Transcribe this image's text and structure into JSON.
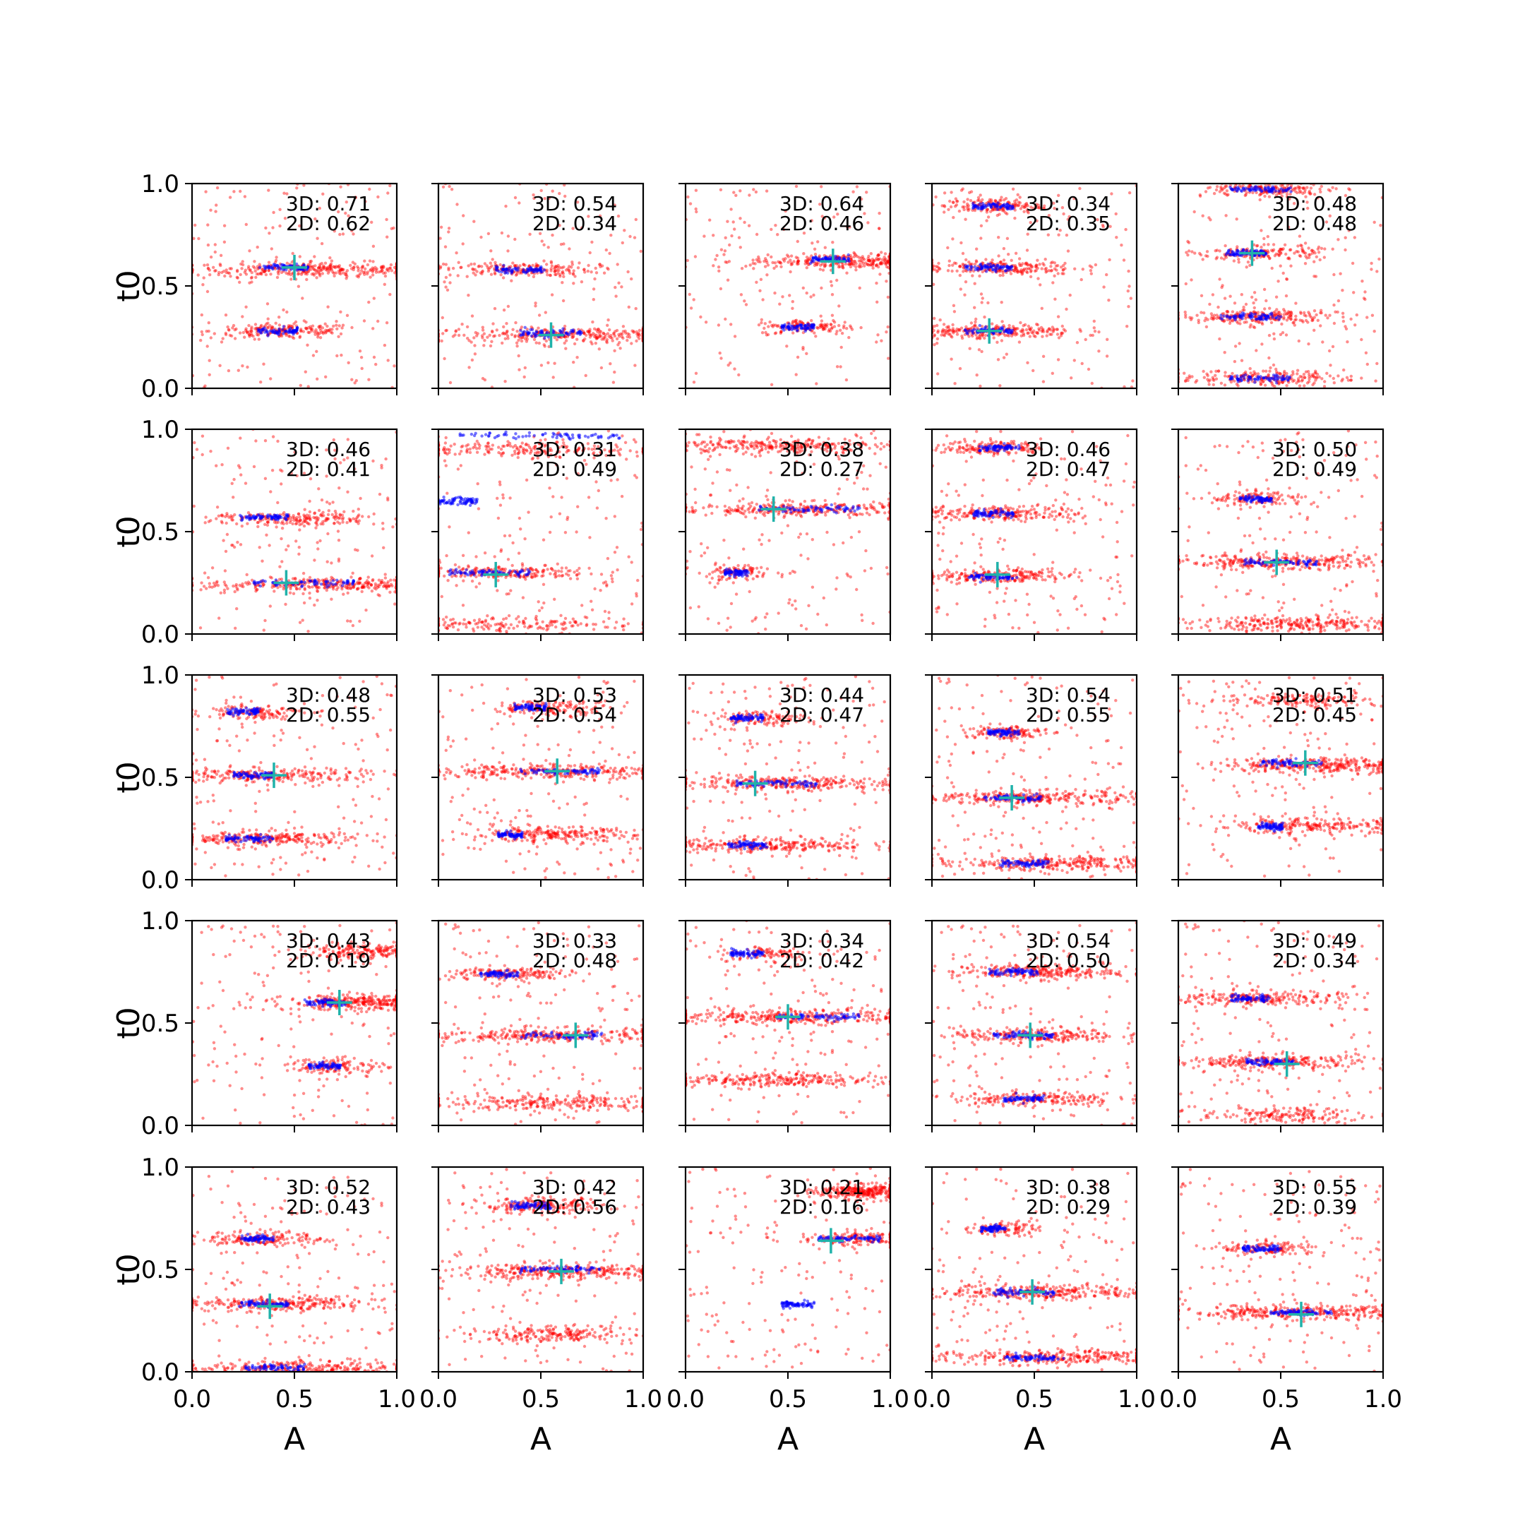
{
  "figure": {
    "xlabel": "A",
    "ylabel": "t0",
    "colors": {
      "points_red": "#ff0000",
      "points_blue": "#0000ff",
      "marker": "#20b2aa"
    }
  },
  "chart_data": {
    "type": "scatter",
    "layout": "5x5 grid of subplots",
    "xlabel": "A",
    "ylabel": "t0",
    "xlim": [
      0,
      1
    ],
    "ylim": [
      0,
      1
    ],
    "xticks": [
      "0.0",
      "0.5",
      "1.0"
    ],
    "yticks": [
      "0.0",
      "0.5",
      "1.0"
    ],
    "series_colors": [
      "#ff0000",
      "#0000ff"
    ],
    "marker": "+",
    "marker_color": "#20b2aa",
    "panels": [
      {
        "ann3d": "3D: 0.71",
        "ann2d": "2D: 0.62",
        "marker": [
          0.5,
          0.59
        ],
        "blue": [
          [
            0.45,
            0.59,
            0.12
          ],
          [
            0.42,
            0.28,
            0.1
          ]
        ],
        "red": [
          [
            0.6,
            0.58,
            0.3,
            1.0
          ],
          [
            0.45,
            0.28,
            0.18,
            0.6
          ]
        ]
      },
      {
        "ann3d": "3D: 0.54",
        "ann2d": "2D: 0.34",
        "marker": [
          0.55,
          0.26
        ],
        "blue": [
          [
            0.4,
            0.58,
            0.12
          ],
          [
            0.55,
            0.27,
            0.15
          ]
        ],
        "red": [
          [
            0.4,
            0.58,
            0.18,
            0.6
          ],
          [
            0.7,
            0.26,
            0.35,
            1.0
          ]
        ]
      },
      {
        "ann3d": "3D: 0.64",
        "ann2d": "2D: 0.46",
        "marker": [
          0.72,
          0.62
        ],
        "blue": [
          [
            0.55,
            0.3,
            0.08
          ],
          [
            0.7,
            0.63,
            0.1
          ]
        ],
        "red": [
          [
            0.8,
            0.62,
            0.25,
            1.0
          ],
          [
            0.6,
            0.3,
            0.12,
            0.4
          ]
        ]
      },
      {
        "ann3d": "3D: 0.34",
        "ann2d": "2D: 0.35",
        "marker": [
          0.28,
          0.28
        ],
        "blue": [
          [
            0.3,
            0.89,
            0.1
          ],
          [
            0.28,
            0.59,
            0.12
          ],
          [
            0.28,
            0.28,
            0.12
          ]
        ],
        "red": [
          [
            0.3,
            0.89,
            0.12,
            0.5
          ],
          [
            0.3,
            0.59,
            0.2,
            0.7
          ],
          [
            0.3,
            0.28,
            0.2,
            0.7
          ]
        ]
      },
      {
        "ann3d": "3D: 0.48",
        "ann2d": "2D: 0.48",
        "marker": [
          0.36,
          0.66
        ],
        "blue": [
          [
            0.4,
            0.97,
            0.15
          ],
          [
            0.33,
            0.66,
            0.1
          ],
          [
            0.35,
            0.35,
            0.15
          ],
          [
            0.4,
            0.05,
            0.15
          ]
        ],
        "red": [
          [
            0.45,
            0.97,
            0.15,
            0.5
          ],
          [
            0.4,
            0.66,
            0.15,
            0.5
          ],
          [
            0.4,
            0.35,
            0.2,
            0.7
          ],
          [
            0.4,
            0.05,
            0.2,
            0.6
          ]
        ]
      },
      {
        "ann3d": "3D: 0.46",
        "ann2d": "2D: 0.41",
        "marker": [
          0.46,
          0.25
        ],
        "blue": [
          [
            0.35,
            0.57,
            0.12
          ],
          [
            0.55,
            0.25,
            0.25
          ]
        ],
        "red": [
          [
            0.5,
            0.56,
            0.2,
            0.6
          ],
          [
            0.65,
            0.24,
            0.3,
            1.0
          ]
        ]
      },
      {
        "ann3d": "3D: 0.31",
        "ann2d": "2D: 0.49",
        "marker": [
          0.28,
          0.29
        ],
        "blue": [
          [
            0.5,
            0.97,
            0.4
          ],
          [
            0.25,
            0.3,
            0.2
          ],
          [
            0.1,
            0.65,
            0.1
          ]
        ],
        "red": [
          [
            0.4,
            0.9,
            0.35,
            0.6
          ],
          [
            0.25,
            0.3,
            0.25,
            0.7
          ],
          [
            0.4,
            0.05,
            0.3,
            0.5
          ]
        ]
      },
      {
        "ann3d": "3D: 0.38",
        "ann2d": "2D: 0.27",
        "marker": [
          0.43,
          0.61
        ],
        "blue": [
          [
            0.6,
            0.61,
            0.25
          ],
          [
            0.25,
            0.3,
            0.06
          ]
        ],
        "red": [
          [
            0.45,
            0.92,
            0.25,
            0.8
          ],
          [
            0.55,
            0.61,
            0.3,
            0.9
          ],
          [
            0.25,
            0.3,
            0.1,
            0.3
          ]
        ]
      },
      {
        "ann3d": "3D: 0.46",
        "ann2d": "2D: 0.47",
        "marker": [
          0.32,
          0.29
        ],
        "blue": [
          [
            0.33,
            0.91,
            0.1
          ],
          [
            0.3,
            0.59,
            0.1
          ],
          [
            0.3,
            0.28,
            0.12
          ]
        ],
        "red": [
          [
            0.3,
            0.91,
            0.12,
            0.5
          ],
          [
            0.35,
            0.59,
            0.2,
            0.7
          ],
          [
            0.3,
            0.28,
            0.2,
            0.7
          ]
        ]
      },
      {
        "ann3d": "3D: 0.50",
        "ann2d": "2D: 0.49",
        "marker": [
          0.48,
          0.35
        ],
        "blue": [
          [
            0.38,
            0.66,
            0.08
          ],
          [
            0.5,
            0.35,
            0.18
          ]
        ],
        "red": [
          [
            0.4,
            0.66,
            0.12,
            0.4
          ],
          [
            0.5,
            0.35,
            0.25,
            0.9
          ],
          [
            0.65,
            0.05,
            0.3,
            0.9
          ]
        ]
      },
      {
        "ann3d": "3D: 0.48",
        "ann2d": "2D: 0.55",
        "marker": [
          0.4,
          0.51
        ],
        "blue": [
          [
            0.25,
            0.82,
            0.08
          ],
          [
            0.3,
            0.51,
            0.1
          ],
          [
            0.28,
            0.2,
            0.12
          ]
        ],
        "red": [
          [
            0.3,
            0.82,
            0.12,
            0.4
          ],
          [
            0.35,
            0.51,
            0.25,
            0.8
          ],
          [
            0.35,
            0.2,
            0.25,
            0.8
          ]
        ]
      },
      {
        "ann3d": "3D: 0.53",
        "ann2d": "2D: 0.54",
        "marker": [
          0.58,
          0.53
        ],
        "blue": [
          [
            0.45,
            0.84,
            0.08
          ],
          [
            0.6,
            0.53,
            0.2
          ],
          [
            0.35,
            0.22,
            0.06
          ]
        ],
        "red": [
          [
            0.55,
            0.84,
            0.15,
            0.5
          ],
          [
            0.55,
            0.53,
            0.3,
            0.9
          ],
          [
            0.55,
            0.22,
            0.2,
            0.7
          ]
        ]
      },
      {
        "ann3d": "3D: 0.44",
        "ann2d": "2D: 0.47",
        "marker": [
          0.34,
          0.47
        ],
        "blue": [
          [
            0.3,
            0.79,
            0.08
          ],
          [
            0.45,
            0.47,
            0.2
          ],
          [
            0.3,
            0.17,
            0.1
          ]
        ],
        "red": [
          [
            0.35,
            0.79,
            0.12,
            0.4
          ],
          [
            0.45,
            0.47,
            0.3,
            0.9
          ],
          [
            0.4,
            0.17,
            0.25,
            0.8
          ]
        ]
      },
      {
        "ann3d": "3D: 0.54",
        "ann2d": "2D: 0.55",
        "marker": [
          0.39,
          0.4
        ],
        "blue": [
          [
            0.35,
            0.72,
            0.08
          ],
          [
            0.4,
            0.4,
            0.15
          ],
          [
            0.45,
            0.08,
            0.12
          ]
        ],
        "red": [
          [
            0.35,
            0.72,
            0.1,
            0.4
          ],
          [
            0.5,
            0.4,
            0.25,
            0.9
          ],
          [
            0.6,
            0.08,
            0.3,
            0.9
          ]
        ]
      },
      {
        "ann3d": "3D: 0.51",
        "ann2d": "2D: 0.45",
        "marker": [
          0.62,
          0.57
        ],
        "blue": [
          [
            0.55,
            0.57,
            0.15
          ],
          [
            0.45,
            0.26,
            0.06
          ]
        ],
        "red": [
          [
            0.7,
            0.56,
            0.25,
            1.0
          ],
          [
            0.65,
            0.26,
            0.25,
            0.7
          ],
          [
            0.6,
            0.88,
            0.2,
            0.5
          ]
        ]
      },
      {
        "ann3d": "3D: 0.43",
        "ann2d": "2D: 0.19",
        "marker": [
          0.72,
          0.6
        ],
        "blue": [
          [
            0.65,
            0.6,
            0.1
          ],
          [
            0.65,
            0.29,
            0.08
          ]
        ],
        "red": [
          [
            0.82,
            0.6,
            0.18,
            1.0
          ],
          [
            0.7,
            0.29,
            0.12,
            0.4
          ],
          [
            0.85,
            0.85,
            0.15,
            0.6
          ]
        ]
      },
      {
        "ann3d": "3D: 0.33",
        "ann2d": "2D: 0.48",
        "marker": [
          0.67,
          0.44
        ],
        "blue": [
          [
            0.3,
            0.74,
            0.1
          ],
          [
            0.6,
            0.44,
            0.2
          ]
        ],
        "red": [
          [
            0.35,
            0.74,
            0.15,
            0.5
          ],
          [
            0.55,
            0.44,
            0.3,
            0.9
          ],
          [
            0.55,
            0.11,
            0.35,
            0.8
          ]
        ]
      },
      {
        "ann3d": "3D: 0.34",
        "ann2d": "2D: 0.42",
        "marker": [
          0.5,
          0.53
        ],
        "blue": [
          [
            0.65,
            0.53,
            0.2
          ],
          [
            0.3,
            0.84,
            0.08
          ]
        ],
        "red": [
          [
            0.5,
            0.53,
            0.35,
            1.0
          ],
          [
            0.4,
            0.22,
            0.25,
            0.8
          ],
          [
            0.4,
            0.84,
            0.12,
            0.3
          ]
        ]
      },
      {
        "ann3d": "3D: 0.54",
        "ann2d": "2D: 0.50",
        "marker": [
          0.48,
          0.44
        ],
        "blue": [
          [
            0.4,
            0.75,
            0.12
          ],
          [
            0.45,
            0.44,
            0.15
          ],
          [
            0.45,
            0.13,
            0.1
          ]
        ],
        "red": [
          [
            0.5,
            0.75,
            0.2,
            0.8
          ],
          [
            0.5,
            0.44,
            0.2,
            0.7
          ],
          [
            0.5,
            0.13,
            0.2,
            0.6
          ]
        ]
      },
      {
        "ann3d": "3D: 0.49",
        "ann2d": "2D: 0.34",
        "marker": [
          0.53,
          0.3
        ],
        "blue": [
          [
            0.35,
            0.62,
            0.1
          ],
          [
            0.45,
            0.31,
            0.12
          ]
        ],
        "red": [
          [
            0.4,
            0.62,
            0.2,
            0.7
          ],
          [
            0.45,
            0.31,
            0.25,
            0.8
          ],
          [
            0.5,
            0.05,
            0.2,
            0.5
          ]
        ]
      },
      {
        "ann3d": "3D: 0.52",
        "ann2d": "2D: 0.43",
        "marker": [
          0.38,
          0.32
        ],
        "blue": [
          [
            0.32,
            0.65,
            0.08
          ],
          [
            0.35,
            0.33,
            0.12
          ],
          [
            0.4,
            0.02,
            0.15
          ]
        ],
        "red": [
          [
            0.35,
            0.65,
            0.15,
            0.5
          ],
          [
            0.4,
            0.33,
            0.25,
            0.8
          ],
          [
            0.5,
            0.02,
            0.3,
            0.8
          ]
        ]
      },
      {
        "ann3d": "3D: 0.42",
        "ann2d": "2D: 0.56",
        "marker": [
          0.6,
          0.49
        ],
        "blue": [
          [
            0.45,
            0.81,
            0.1
          ],
          [
            0.6,
            0.5,
            0.2
          ]
        ],
        "red": [
          [
            0.5,
            0.81,
            0.15,
            0.6
          ],
          [
            0.65,
            0.49,
            0.3,
            1.0
          ],
          [
            0.55,
            0.18,
            0.2,
            0.6
          ]
        ]
      },
      {
        "ann3d": "3D: 0.21",
        "ann2d": "2D: 0.16",
        "marker": [
          0.71,
          0.64
        ],
        "blue": [
          [
            0.8,
            0.65,
            0.15
          ],
          [
            0.55,
            0.33,
            0.08
          ]
        ],
        "red": [
          [
            0.88,
            0.88,
            0.12,
            1.0
          ],
          [
            0.85,
            0.65,
            0.15,
            0.5
          ]
        ]
      },
      {
        "ann3d": "3D: 0.38",
        "ann2d": "2D: 0.29",
        "marker": [
          0.49,
          0.39
        ],
        "blue": [
          [
            0.3,
            0.7,
            0.06
          ],
          [
            0.45,
            0.39,
            0.15
          ],
          [
            0.5,
            0.07,
            0.15
          ]
        ],
        "red": [
          [
            0.35,
            0.7,
            0.08,
            0.3
          ],
          [
            0.55,
            0.39,
            0.25,
            0.9
          ],
          [
            0.6,
            0.07,
            0.3,
            0.9
          ]
        ]
      },
      {
        "ann3d": "3D: 0.55",
        "ann2d": "2D: 0.39",
        "marker": [
          0.6,
          0.28
        ],
        "blue": [
          [
            0.4,
            0.6,
            0.1
          ],
          [
            0.6,
            0.29,
            0.15
          ]
        ],
        "red": [
          [
            0.45,
            0.6,
            0.12,
            0.4
          ],
          [
            0.6,
            0.29,
            0.3,
            1.0
          ]
        ]
      }
    ]
  }
}
